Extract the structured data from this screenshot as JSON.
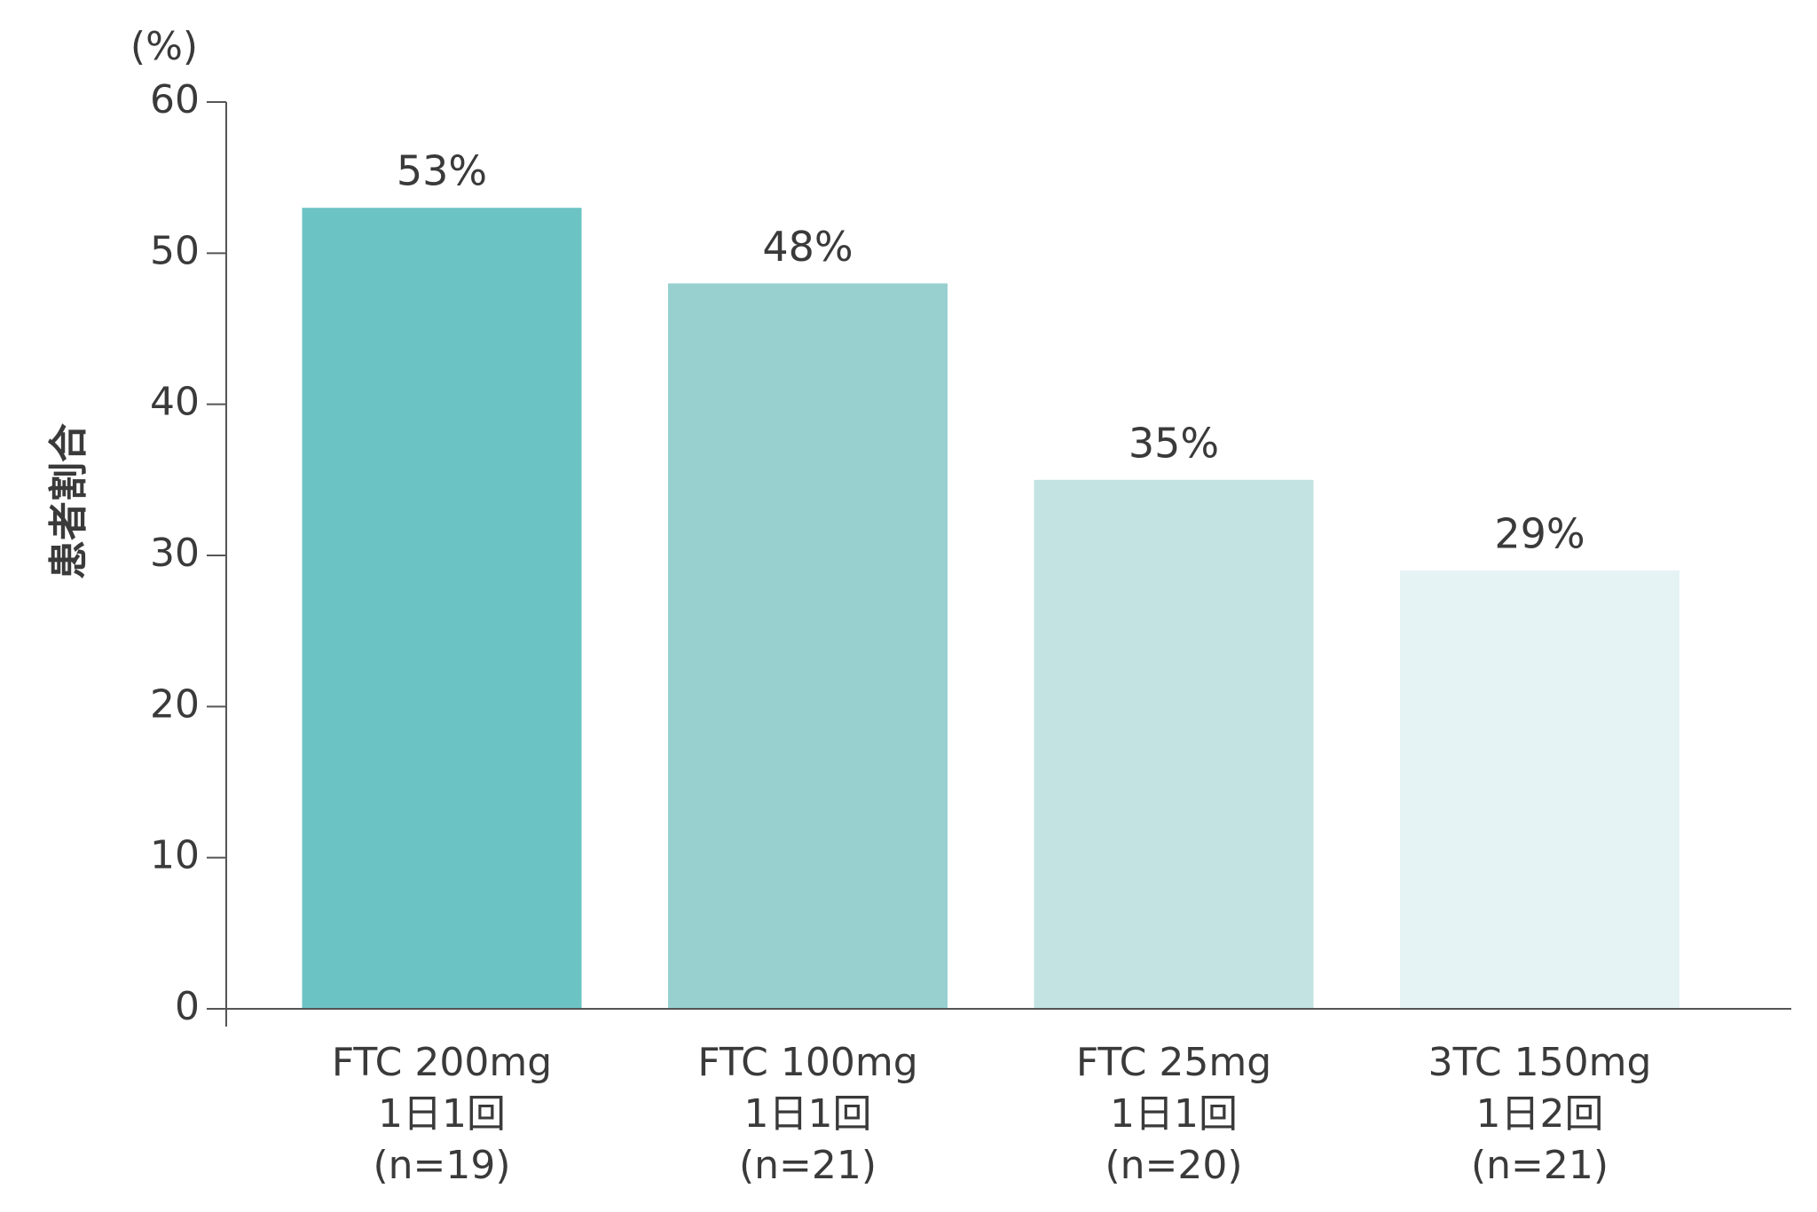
{
  "chart_data": {
    "type": "bar",
    "y_label": "患者割合",
    "y_unit": "(%)",
    "categories": [
      [
        "FTC 200mg",
        "1日1回",
        "(n=19)"
      ],
      [
        "FTC 100mg",
        "1日1回",
        "(n=21)"
      ],
      [
        "FTC 25mg",
        "1日1回",
        "(n=20)"
      ],
      [
        "3TC 150mg",
        "1日2回",
        "(n=21)"
      ]
    ],
    "values": [
      53,
      48,
      35,
      29
    ],
    "value_labels": [
      "53%",
      "48%",
      "35%",
      "29%"
    ],
    "colors": [
      "#6cc3c4",
      "#98d0d0",
      "#c3e3e2",
      "#e6f3f4"
    ],
    "ylim": [
      0,
      60
    ],
    "yticks": [
      0,
      10,
      20,
      30,
      40,
      50,
      60
    ]
  }
}
